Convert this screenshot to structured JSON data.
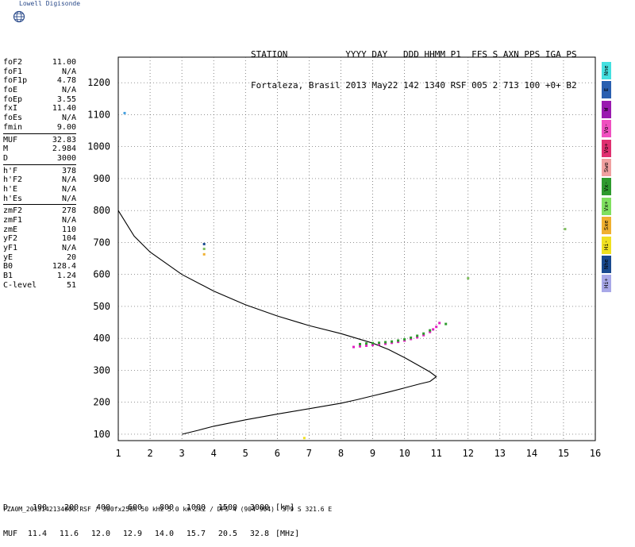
{
  "branding": {
    "name": "Lowell Digisonde",
    "logo_icon": "globe-logo-icon"
  },
  "header": {
    "labels": "STATION           YYYY DAY   DDD HHMM P1  FFS S AXN PPS IGA PS",
    "values": "Fortaleza, Brasil 2013 May22 142 1340 RSF 005 2 713 100 +0+ B2"
  },
  "parameters": [
    [
      {
        "name": "foF2",
        "value": "11.00"
      },
      {
        "name": "foF1",
        "value": "N/A"
      },
      {
        "name": "foF1p",
        "value": "4.78"
      },
      {
        "name": "foE",
        "value": "N/A"
      },
      {
        "name": "foEp",
        "value": "3.55"
      },
      {
        "name": "fxI",
        "value": "11.40"
      },
      {
        "name": "foEs",
        "value": "N/A"
      },
      {
        "name": "fmin",
        "value": "9.00"
      }
    ],
    [
      {
        "name": "MUF",
        "value": "32.83"
      },
      {
        "name": "M",
        "value": "2.984"
      },
      {
        "name": "D",
        "value": "3000"
      }
    ],
    [
      {
        "name": "h'F",
        "value": "378"
      },
      {
        "name": "h'F2",
        "value": "N/A"
      },
      {
        "name": "h'E",
        "value": "N/A"
      },
      {
        "name": "h'Es",
        "value": "N/A"
      }
    ],
    [
      {
        "name": "zmF2",
        "value": "278"
      },
      {
        "name": "zmF1",
        "value": "N/A"
      },
      {
        "name": "zmE",
        "value": "110"
      },
      {
        "name": "yF2",
        "value": "104"
      },
      {
        "name": "yF1",
        "value": "N/A"
      },
      {
        "name": "yE",
        "value": "20"
      },
      {
        "name": "B0",
        "value": "128.4"
      },
      {
        "name": "B1",
        "value": "1.24"
      },
      {
        "name": "C-level",
        "value": "51"
      }
    ]
  ],
  "legend": [
    {
      "label": "Nne",
      "color": "#44e0e0"
    },
    {
      "label": "E",
      "color": "#2a5fb0"
    },
    {
      "label": "W",
      "color": "#9a1ab0"
    },
    {
      "label": "Vo-",
      "color": "#f050c0"
    },
    {
      "label": "Vo+",
      "color": "#e03070"
    },
    {
      "label": "Swo",
      "color": "#f0a0a0"
    },
    {
      "label": "Vx-",
      "color": "#2e9a2e"
    },
    {
      "label": "Vx+",
      "color": "#80e060"
    },
    {
      "label": "Sxe",
      "color": "#f0b030"
    },
    {
      "label": "Hi-",
      "color": "#f0e020"
    },
    {
      "label": "Nhe",
      "color": "#1a4a90"
    },
    {
      "label": "Hi+",
      "color": "#a8a8e8"
    }
  ],
  "muf_table": {
    "d_label": "D",
    "muf_label": "MUF",
    "d_values": [
      "100",
      "200",
      "400",
      "600",
      "800",
      "1000",
      "1500",
      "3000"
    ],
    "muf_values": [
      "11.4",
      "11.6",
      "12.0",
      "12.9",
      "14.0",
      "15.7",
      "20.5",
      "32.8"
    ],
    "d_unit": "[km]",
    "muf_unit": "[MHz]"
  },
  "footer": "FZA0M_2013142134000.RSF / 300fx256h 50 kHz 5.0 km 2x2 / DPS-4 (904-904)  3.9 S 321.6 E",
  "chart_data": {
    "type": "scatter",
    "title": "",
    "xlabel": "",
    "ylabel": "",
    "xlim": [
      1,
      16
    ],
    "ylim": [
      80,
      1280
    ],
    "x_ticks": [
      1,
      2,
      3,
      4,
      5,
      6,
      7,
      8,
      9,
      10,
      11,
      12,
      13,
      14,
      15,
      16
    ],
    "y_ticks": [
      100,
      200,
      300,
      400,
      500,
      600,
      700,
      800,
      900,
      1000,
      1100,
      1200
    ],
    "grid": true,
    "profile_curve": {
      "x": [
        1.0,
        1.5,
        2.0,
        3.0,
        4.0,
        5.0,
        6.0,
        7.0,
        8.0,
        8.5,
        9.0,
        9.5,
        10.0,
        10.5,
        10.8,
        11.0,
        10.8,
        10.5,
        10.0,
        9.5,
        9.0,
        8.5,
        8.0,
        7.0,
        6.0,
        5.0,
        4.0,
        3.5,
        3.0
      ],
      "y": [
        800,
        720,
        670,
        600,
        548,
        505,
        470,
        440,
        415,
        400,
        385,
        365,
        340,
        312,
        295,
        280,
        265,
        258,
        245,
        232,
        220,
        208,
        197,
        180,
        163,
        145,
        125,
        112,
        100
      ]
    },
    "traces": [
      {
        "name": "Vo-",
        "color": "#e020c0",
        "x": [
          8.4,
          8.6,
          8.8,
          9.0,
          9.2,
          9.4,
          9.6,
          9.8,
          10.0,
          10.2,
          10.4,
          10.6,
          10.8,
          10.9,
          11.0,
          11.1
        ],
        "y": [
          373,
          375,
          377,
          379,
          381,
          383,
          386,
          389,
          393,
          398,
          403,
          410,
          420,
          428,
          436,
          448
        ]
      },
      {
        "name": "Vx-",
        "color": "#2e9a2e",
        "x": [
          8.6,
          8.8,
          9.0,
          9.2,
          9.4,
          9.6,
          9.8,
          10.0,
          10.2,
          10.4,
          10.6,
          10.8,
          11.3
        ],
        "y": [
          382,
          384,
          385,
          386,
          388,
          390,
          393,
          397,
          402,
          408,
          415,
          425,
          445
        ]
      },
      {
        "name": "Nne",
        "color": "#44a0e0",
        "x": [
          1.2
        ],
        "y": [
          1105
        ]
      },
      {
        "name": "Nhe",
        "color": "#1a4a90",
        "x": [
          3.7
        ],
        "y": [
          695
        ]
      },
      {
        "name": "Vx+",
        "color": "#80c060",
        "x": [
          3.7,
          12.0,
          15.05
        ],
        "y": [
          680,
          588,
          742
        ]
      },
      {
        "name": "Sxe",
        "color": "#f0b030",
        "x": [
          3.7
        ],
        "y": [
          663
        ]
      },
      {
        "name": "Hi-",
        "color": "#f0e020",
        "x": [
          6.85
        ],
        "y": [
          88
        ]
      }
    ]
  }
}
